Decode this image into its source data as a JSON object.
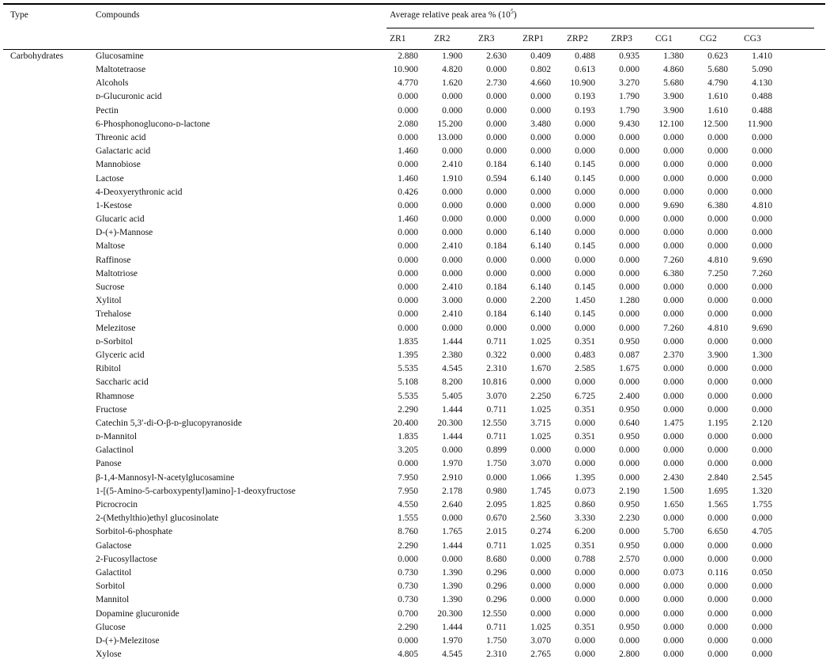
{
  "table": {
    "headers": {
      "type": "Type",
      "compounds": "Compounds",
      "group": "Average relative peak area % (10",
      "group_sup": "5",
      "group_suffix": ")",
      "samples": [
        "ZR1",
        "ZR2",
        "ZR3",
        "ZRP1",
        "ZRP2",
        "ZRP3",
        "CG1",
        "CG2",
        "CG3"
      ]
    },
    "rows": [
      {
        "type": "Carbohydrates",
        "compound": "Glucosamine",
        "values": [
          "2.880",
          "1.900",
          "2.630",
          "0.409",
          "0.488",
          "0.935",
          "1.380",
          "0.623",
          "1.410"
        ]
      },
      {
        "type": "",
        "compound": "Maltotetraose",
        "values": [
          "10.900",
          "4.820",
          "0.000",
          "0.802",
          "0.613",
          "0.000",
          "4.860",
          "5.680",
          "5.090"
        ]
      },
      {
        "type": "",
        "compound": "Alcohols",
        "values": [
          "4.770",
          "1.620",
          "2.730",
          "4.660",
          "10.900",
          "3.270",
          "5.680",
          "4.790",
          "4.130"
        ]
      },
      {
        "type": "",
        "compound": "ᴅ-Glucuronic acid",
        "values": [
          "0.000",
          "0.000",
          "0.000",
          "0.000",
          "0.193",
          "1.790",
          "3.900",
          "1.610",
          "0.488"
        ]
      },
      {
        "type": "",
        "compound": "Pectin",
        "values": [
          "0.000",
          "0.000",
          "0.000",
          "0.000",
          "0.193",
          "1.790",
          "3.900",
          "1.610",
          "0.488"
        ]
      },
      {
        "type": "",
        "compound": "6-Phosphonoglucono-ᴅ-lactone",
        "values": [
          "2.080",
          "15.200",
          "0.000",
          "3.480",
          "0.000",
          "9.430",
          "12.100",
          "12.500",
          "11.900"
        ]
      },
      {
        "type": "",
        "compound": "Threonic acid",
        "values": [
          "0.000",
          "13.000",
          "0.000",
          "0.000",
          "0.000",
          "0.000",
          "0.000",
          "0.000",
          "0.000"
        ]
      },
      {
        "type": "",
        "compound": "Galactaric acid",
        "values": [
          "1.460",
          "0.000",
          "0.000",
          "0.000",
          "0.000",
          "0.000",
          "0.000",
          "0.000",
          "0.000"
        ]
      },
      {
        "type": "",
        "compound": "Mannobiose",
        "values": [
          "0.000",
          "2.410",
          "0.184",
          "6.140",
          "0.145",
          "0.000",
          "0.000",
          "0.000",
          "0.000"
        ]
      },
      {
        "type": "",
        "compound": "Lactose",
        "values": [
          "1.460",
          "1.910",
          "0.594",
          "6.140",
          "0.145",
          "0.000",
          "0.000",
          "0.000",
          "0.000"
        ]
      },
      {
        "type": "",
        "compound": "4-Deoxyerythronic acid",
        "values": [
          "0.426",
          "0.000",
          "0.000",
          "0.000",
          "0.000",
          "0.000",
          "0.000",
          "0.000",
          "0.000"
        ]
      },
      {
        "type": "",
        "compound": "1-Kestose",
        "values": [
          "0.000",
          "0.000",
          "0.000",
          "0.000",
          "0.000",
          "0.000",
          "9.690",
          "6.380",
          "4.810"
        ]
      },
      {
        "type": "",
        "compound": "Glucaric acid",
        "values": [
          "1.460",
          "0.000",
          "0.000",
          "0.000",
          "0.000",
          "0.000",
          "0.000",
          "0.000",
          "0.000"
        ]
      },
      {
        "type": "",
        "compound": "D-(+)-Mannose",
        "values": [
          "0.000",
          "0.000",
          "0.000",
          "6.140",
          "0.000",
          "0.000",
          "0.000",
          "0.000",
          "0.000"
        ]
      },
      {
        "type": "",
        "compound": "Maltose",
        "values": [
          "0.000",
          "2.410",
          "0.184",
          "6.140",
          "0.145",
          "0.000",
          "0.000",
          "0.000",
          "0.000"
        ]
      },
      {
        "type": "",
        "compound": "Raffinose",
        "values": [
          "0.000",
          "0.000",
          "0.000",
          "0.000",
          "0.000",
          "0.000",
          "7.260",
          "4.810",
          "9.690"
        ]
      },
      {
        "type": "",
        "compound": "Maltotriose",
        "values": [
          "0.000",
          "0.000",
          "0.000",
          "0.000",
          "0.000",
          "0.000",
          "6.380",
          "7.250",
          "7.260"
        ]
      },
      {
        "type": "",
        "compound": "Sucrose",
        "values": [
          "0.000",
          "2.410",
          "0.184",
          "6.140",
          "0.145",
          "0.000",
          "0.000",
          "0.000",
          "0.000"
        ]
      },
      {
        "type": "",
        "compound": "Xylitol",
        "values": [
          "0.000",
          "3.000",
          "0.000",
          "2.200",
          "1.450",
          "1.280",
          "0.000",
          "0.000",
          "0.000"
        ]
      },
      {
        "type": "",
        "compound": "Trehalose",
        "values": [
          "0.000",
          "2.410",
          "0.184",
          "6.140",
          "0.145",
          "0.000",
          "0.000",
          "0.000",
          "0.000"
        ]
      },
      {
        "type": "",
        "compound": "Melezitose",
        "values": [
          "0.000",
          "0.000",
          "0.000",
          "0.000",
          "0.000",
          "0.000",
          "7.260",
          "4.810",
          "9.690"
        ]
      },
      {
        "type": "",
        "compound": "ᴅ-Sorbitol",
        "values": [
          "1.835",
          "1.444",
          "0.711",
          "1.025",
          "0.351",
          "0.950",
          "0.000",
          "0.000",
          "0.000"
        ]
      },
      {
        "type": "",
        "compound": "Glyceric acid",
        "values": [
          "1.395",
          "2.380",
          "0.322",
          "0.000",
          "0.483",
          "0.087",
          "2.370",
          "3.900",
          "1.300"
        ]
      },
      {
        "type": "",
        "compound": "Ribitol",
        "values": [
          "5.535",
          "4.545",
          "2.310",
          "1.670",
          "2.585",
          "1.675",
          "0.000",
          "0.000",
          "0.000"
        ]
      },
      {
        "type": "",
        "compound": "Saccharic acid",
        "values": [
          "5.108",
          "8.200",
          "10.816",
          "0.000",
          "0.000",
          "0.000",
          "0.000",
          "0.000",
          "0.000"
        ]
      },
      {
        "type": "",
        "compound": "Rhamnose",
        "values": [
          "5.535",
          "5.405",
          "3.070",
          "2.250",
          "6.725",
          "2.400",
          "0.000",
          "0.000",
          "0.000"
        ]
      },
      {
        "type": "",
        "compound": "Fructose",
        "values": [
          "2.290",
          "1.444",
          "0.711",
          "1.025",
          "0.351",
          "0.950",
          "0.000",
          "0.000",
          "0.000"
        ]
      },
      {
        "type": "",
        "compound": "Catechin 5,3′-di-O-β-ᴅ-glucopyranoside",
        "values": [
          "20.400",
          "20.300",
          "12.550",
          "3.715",
          "0.000",
          "0.640",
          "1.475",
          "1.195",
          "2.120"
        ]
      },
      {
        "type": "",
        "compound": "ᴅ-Mannitol",
        "values": [
          "1.835",
          "1.444",
          "0.711",
          "1.025",
          "0.351",
          "0.950",
          "0.000",
          "0.000",
          "0.000"
        ]
      },
      {
        "type": "",
        "compound": "Galactinol",
        "values": [
          "3.205",
          "0.000",
          "0.899",
          "0.000",
          "0.000",
          "0.000",
          "0.000",
          "0.000",
          "0.000"
        ]
      },
      {
        "type": "",
        "compound": "Panose",
        "values": [
          "0.000",
          "1.970",
          "1.750",
          "3.070",
          "0.000",
          "0.000",
          "0.000",
          "0.000",
          "0.000"
        ]
      },
      {
        "type": "",
        "compound": "β-1,4-Mannosyl-N-acetylglucosamine",
        "values": [
          "7.950",
          "2.910",
          "0.000",
          "1.066",
          "1.395",
          "0.000",
          "2.430",
          "2.840",
          "2.545"
        ]
      },
      {
        "type": "",
        "compound": "1-[(5-Amino-5-carboxypentyl)amino]-1-deoxyfructose",
        "values": [
          "7.950",
          "2.178",
          "0.980",
          "1.745",
          "0.073",
          "2.190",
          "1.500",
          "1.695",
          "1.320"
        ]
      },
      {
        "type": "",
        "compound": "Picrocrocin",
        "values": [
          "4.550",
          "2.640",
          "2.095",
          "1.825",
          "0.860",
          "0.950",
          "1.650",
          "1.565",
          "1.755"
        ]
      },
      {
        "type": "",
        "compound": "2-(Methylthio)ethyl glucosinolate",
        "values": [
          "1.555",
          "0.000",
          "0.670",
          "2.560",
          "3.330",
          "2.230",
          "0.000",
          "0.000",
          "0.000"
        ]
      },
      {
        "type": "",
        "compound": "Sorbitol-6-phosphate",
        "values": [
          "8.760",
          "1.765",
          "2.015",
          "0.274",
          "6.200",
          "0.000",
          "5.700",
          "6.650",
          "4.705"
        ]
      },
      {
        "type": "",
        "compound": "Galactose",
        "values": [
          "2.290",
          "1.444",
          "0.711",
          "1.025",
          "0.351",
          "0.950",
          "0.000",
          "0.000",
          "0.000"
        ]
      },
      {
        "type": "",
        "compound": "2-Fucosyllactose",
        "values": [
          "0.000",
          "0.000",
          "8.680",
          "0.000",
          "0.788",
          "2.570",
          "0.000",
          "0.000",
          "0.000"
        ]
      },
      {
        "type": "",
        "compound": "Galactitol",
        "values": [
          "0.730",
          "1.390",
          "0.296",
          "0.000",
          "0.000",
          "0.000",
          "0.073",
          "0.116",
          "0.050"
        ]
      },
      {
        "type": "",
        "compound": "Sorbitol",
        "values": [
          "0.730",
          "1.390",
          "0.296",
          "0.000",
          "0.000",
          "0.000",
          "0.000",
          "0.000",
          "0.000"
        ]
      },
      {
        "type": "",
        "compound": "Mannitol",
        "values": [
          "0.730",
          "1.390",
          "0.296",
          "0.000",
          "0.000",
          "0.000",
          "0.000",
          "0.000",
          "0.000"
        ]
      },
      {
        "type": "",
        "compound": "Dopamine glucuronide",
        "values": [
          "0.700",
          "20.300",
          "12.550",
          "0.000",
          "0.000",
          "0.000",
          "0.000",
          "0.000",
          "0.000"
        ]
      },
      {
        "type": "",
        "compound": "Glucose",
        "values": [
          "2.290",
          "1.444",
          "0.711",
          "1.025",
          "0.351",
          "0.950",
          "0.000",
          "0.000",
          "0.000"
        ]
      },
      {
        "type": "",
        "compound": "D-(+)-Melezitose",
        "values": [
          "0.000",
          "1.970",
          "1.750",
          "3.070",
          "0.000",
          "0.000",
          "0.000",
          "0.000",
          "0.000"
        ]
      },
      {
        "type": "",
        "compound": "Xylose",
        "values": [
          "4.805",
          "4.545",
          "2.310",
          "2.765",
          "0.000",
          "2.800",
          "0.000",
          "0.000",
          "0.000"
        ]
      }
    ]
  }
}
